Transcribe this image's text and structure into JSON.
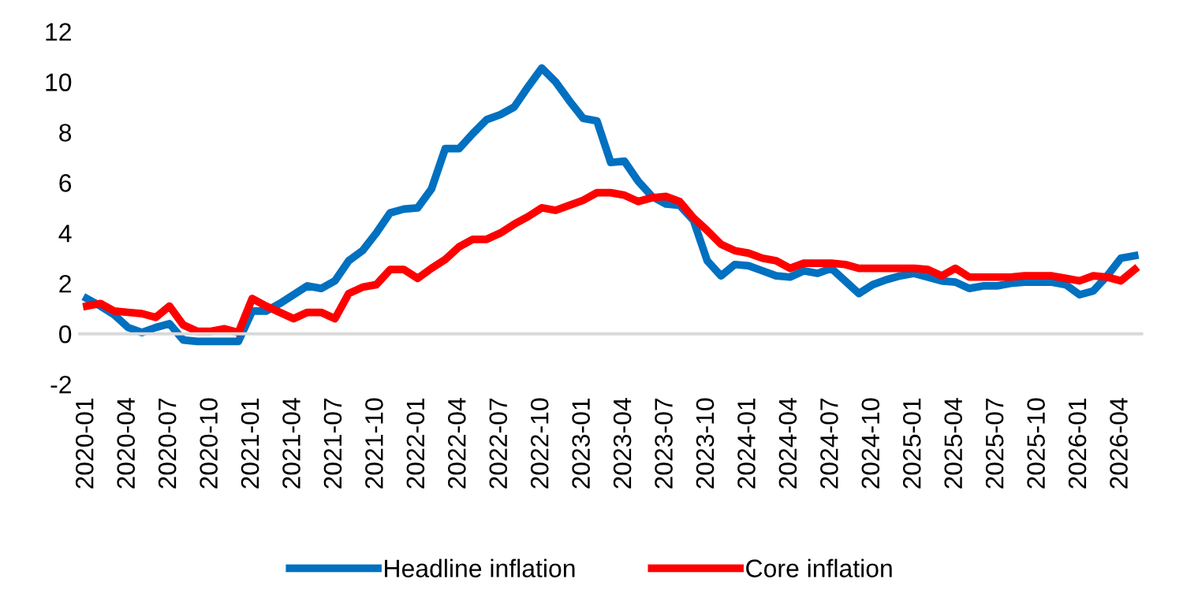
{
  "chart_data": {
    "type": "line",
    "categories": [
      "2020-01",
      null,
      null,
      "2020-04",
      null,
      null,
      "2020-07",
      null,
      null,
      "2020-10",
      null,
      null,
      "2021-01",
      null,
      null,
      "2021-04",
      null,
      null,
      "2021-07",
      null,
      null,
      "2021-10",
      null,
      null,
      "2022-01",
      null,
      null,
      "2022-04",
      null,
      null,
      "2022-07",
      null,
      null,
      "2022-10",
      null,
      null,
      "2023-01",
      null,
      null,
      "2023-04",
      null,
      null,
      "2023-07",
      null,
      null,
      "2023-10",
      null,
      null,
      "2024-01",
      null,
      null,
      "2024-04",
      null,
      null,
      "2024-07",
      null,
      null,
      "2024-10",
      null,
      null,
      "2025-01",
      null,
      null,
      "2025-04",
      null,
      null,
      "2025-07",
      null,
      null,
      "2025-10",
      null,
      null,
      "2026-01",
      null,
      null,
      "2026-04",
      null
    ],
    "series": [
      {
        "name": "Headline inflation",
        "color": "#0070c0",
        "values": [
          1.4,
          1.1,
          0.75,
          0.25,
          0.05,
          0.25,
          0.4,
          -0.25,
          -0.3,
          -0.3,
          -0.3,
          -0.3,
          0.9,
          0.9,
          1.2,
          1.55,
          1.9,
          1.8,
          2.1,
          2.9,
          3.3,
          4.0,
          4.8,
          4.95,
          5.0,
          5.75,
          7.35,
          7.35,
          7.95,
          8.5,
          8.7,
          9.0,
          9.8,
          10.55,
          10.0,
          9.25,
          8.55,
          8.45,
          6.8,
          6.85,
          6.05,
          5.45,
          5.15,
          5.1,
          4.5,
          2.9,
          2.3,
          2.75,
          2.7,
          2.5,
          2.3,
          2.25,
          2.5,
          2.4,
          2.6,
          2.1,
          1.6,
          1.95,
          2.15,
          2.3,
          2.4,
          2.25,
          2.1,
          2.05,
          1.8,
          1.9,
          1.9,
          2.0,
          2.05,
          2.05,
          2.05,
          1.95,
          1.55,
          1.7,
          2.3,
          3.0,
          3.1
        ]
      },
      {
        "name": "Core inflation",
        "color": "#ff0000",
        "values": [
          1.1,
          1.2,
          0.9,
          0.85,
          0.8,
          0.65,
          1.1,
          0.35,
          0.1,
          0.1,
          0.2,
          0.05,
          1.4,
          1.1,
          0.85,
          0.6,
          0.85,
          0.85,
          0.6,
          1.6,
          1.85,
          1.95,
          2.55,
          2.55,
          2.2,
          2.6,
          2.95,
          3.45,
          3.75,
          3.75,
          4.0,
          4.35,
          4.65,
          5.0,
          4.9,
          5.1,
          5.3,
          5.6,
          5.6,
          5.5,
          5.25,
          5.4,
          5.45,
          5.25,
          4.6,
          4.1,
          3.55,
          3.3,
          3.2,
          3.0,
          2.9,
          2.6,
          2.8,
          2.8,
          2.8,
          2.75,
          2.6,
          2.6,
          2.6,
          2.6,
          2.6,
          2.55,
          2.3,
          2.6,
          2.25,
          2.25,
          2.25,
          2.25,
          2.3,
          2.3,
          2.3,
          2.2,
          2.1,
          2.3,
          2.25,
          2.1,
          2.55
        ]
      }
    ],
    "ylim": [
      -2,
      12
    ],
    "yticks": [
      -2,
      0,
      2,
      4,
      6,
      8,
      10,
      12
    ],
    "grid": false,
    "legend": "bottom",
    "marker": "none",
    "line_style": "solid"
  }
}
